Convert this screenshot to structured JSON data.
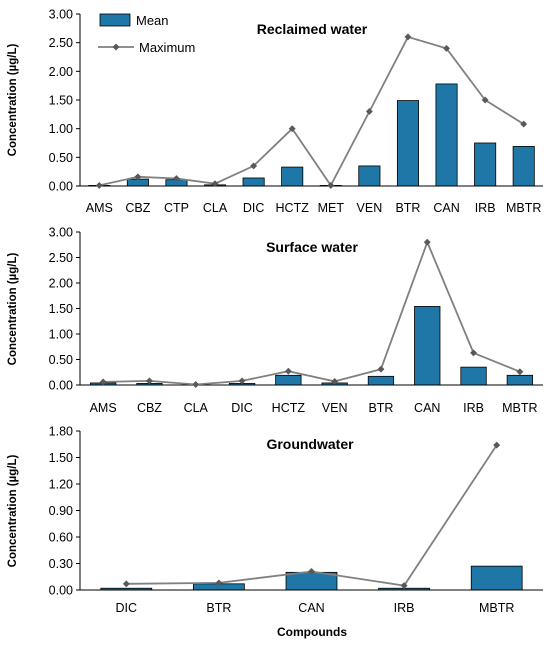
{
  "colors": {
    "bar": "#1F77A8",
    "bar_stroke": "#000000",
    "line": "#808080",
    "marker": "#595959",
    "axis": "#000000"
  },
  "legend": {
    "mean": "Mean",
    "maximum": "Maximum"
  },
  "xlabel": "Compounds",
  "chart_data": [
    {
      "type": "bar",
      "title": "Reclaimed water",
      "ylabel": "Concentration (µg/L)",
      "ylim": [
        0,
        3.0
      ],
      "yticks": [
        "0.00",
        "0.50",
        "1.00",
        "1.50",
        "2.00",
        "2.50",
        "3.00"
      ],
      "categories": [
        "AMS",
        "CBZ",
        "CTP",
        "CLA",
        "DIC",
        "HCTZ",
        "MET",
        "VEN",
        "BTR",
        "CAN",
        "IRB",
        "MBTR"
      ],
      "series": [
        {
          "name": "Mean",
          "type": "bar",
          "values": [
            0.01,
            0.12,
            0.11,
            0.02,
            0.14,
            0.33,
            0.01,
            0.35,
            1.49,
            1.78,
            0.75,
            0.69
          ]
        },
        {
          "name": "Maximum",
          "type": "line",
          "values": [
            0.01,
            0.16,
            0.13,
            0.04,
            0.35,
            1.0,
            0.01,
            1.3,
            2.6,
            2.4,
            1.5,
            1.08
          ]
        }
      ],
      "legend_position": "top-left"
    },
    {
      "type": "bar",
      "title": "Surface water",
      "ylabel": "Concentration (µg/L)",
      "ylim": [
        0,
        3.0
      ],
      "yticks": [
        "0.00",
        "0.50",
        "1.00",
        "1.50",
        "2.00",
        "2.50",
        "3.00"
      ],
      "categories": [
        "AMS",
        "CBZ",
        "CLA",
        "DIC",
        "HCTZ",
        "VEN",
        "BTR",
        "CAN",
        "IRB",
        "MBTR"
      ],
      "series": [
        {
          "name": "Mean",
          "type": "bar",
          "values": [
            0.04,
            0.03,
            0.01,
            0.03,
            0.19,
            0.04,
            0.17,
            1.54,
            0.35,
            0.19
          ]
        },
        {
          "name": "Maximum",
          "type": "line",
          "values": [
            0.06,
            0.08,
            0.01,
            0.08,
            0.27,
            0.07,
            0.31,
            2.8,
            0.63,
            0.26
          ]
        }
      ]
    },
    {
      "type": "bar",
      "title": "Groundwater",
      "ylabel": "Concentration (µg/L)",
      "xlabel": "Compounds",
      "ylim": [
        0,
        1.8
      ],
      "yticks": [
        "0.00",
        "0.30",
        "0.60",
        "0.90",
        "1.20",
        "1.50",
        "1.80"
      ],
      "categories": [
        "DIC",
        "BTR",
        "CAN",
        "IRB",
        "MBTR"
      ],
      "series": [
        {
          "name": "Mean",
          "type": "bar",
          "values": [
            0.02,
            0.07,
            0.2,
            0.02,
            0.27
          ]
        },
        {
          "name": "Maximum",
          "type": "line",
          "values": [
            0.07,
            0.08,
            0.21,
            0.05,
            1.64
          ]
        }
      ]
    }
  ]
}
